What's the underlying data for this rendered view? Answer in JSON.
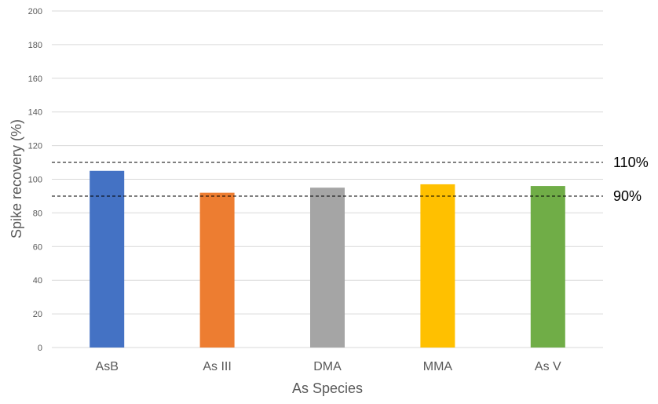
{
  "chart_data": {
    "type": "bar",
    "title": "",
    "xlabel": "As Species",
    "ylabel": "Spike recovery (%)",
    "categories": [
      "AsB",
      "As III",
      "DMA",
      "MMA",
      "As V"
    ],
    "values": [
      105,
      92,
      95,
      97,
      96
    ],
    "colors": [
      "#4472c4",
      "#ed7d31",
      "#a5a5a5",
      "#ffc000",
      "#70ad47"
    ],
    "ylim": [
      0,
      200
    ],
    "yticks": [
      0,
      20,
      40,
      60,
      80,
      100,
      120,
      140,
      160,
      180,
      200
    ],
    "ytick_labels": [
      "0",
      "20",
      "40",
      "60",
      "80",
      "100",
      "120",
      "140",
      "160",
      "180",
      "200"
    ],
    "grid": true,
    "legend": "none",
    "reference_lines": [
      {
        "value": 110,
        "label": "110%",
        "style": "dashed",
        "color": "#000000"
      },
      {
        "value": 90,
        "label": "90%",
        "style": "dashed",
        "color": "#000000"
      }
    ],
    "gridline_color": "#d9d9d9",
    "axis_color": "#d9d9d9",
    "text_color": "#595959"
  }
}
